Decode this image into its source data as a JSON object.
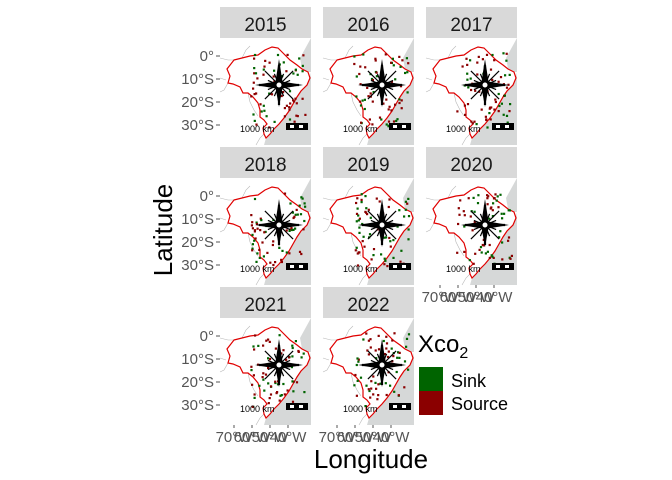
{
  "figure": {
    "xlabel": "Longitude",
    "ylabel": "Latitude",
    "panels": [
      "2015",
      "2016",
      "2017",
      "2018",
      "2019",
      "2020",
      "2021",
      "2022"
    ],
    "lat_ticks": [
      "0°",
      "10°S",
      "20°S",
      "30°S"
    ],
    "lon_ticks": [
      "70°W",
      "60°W",
      "50°W",
      "40°W"
    ],
    "scalebar_label": "1000 km"
  },
  "legend": {
    "title": "Xco",
    "title_subscript": "2",
    "items": [
      {
        "label": "Sink",
        "color": "#006400"
      },
      {
        "label": "Source",
        "color": "#8B0000"
      }
    ]
  },
  "colors": {
    "strip": "#D9D9D9",
    "panel_bg": "#D6D8D8",
    "land": "#FFFFFF",
    "border": "#E00000",
    "sink": "#006400",
    "source": "#8B0000"
  }
}
